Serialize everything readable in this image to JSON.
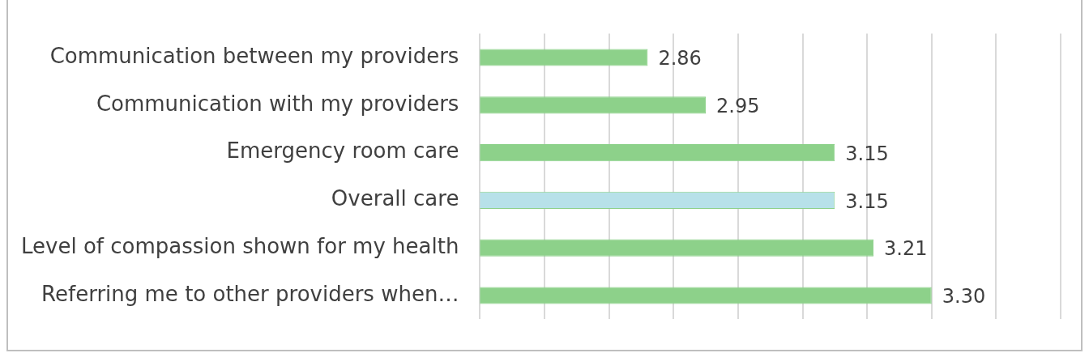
{
  "chart_data": {
    "type": "bar",
    "orientation": "horizontal",
    "categories": [
      "Communication between my providers",
      "Communication with my providers",
      "Emergency room care",
      "Overall care",
      "Level of compassion shown for my health",
      "Referring me to other providers when…"
    ],
    "values": [
      2.86,
      2.95,
      3.15,
      3.15,
      3.21,
      3.3
    ],
    "colors": [
      "#8dd18a",
      "#8dd18a",
      "#8dd18a",
      "#b7e1e9",
      "#8dd18a",
      "#8dd18a"
    ],
    "xlim": [
      2.6,
      3.5
    ],
    "xticks": [
      {
        "value": 2.6,
        "label": null
      },
      {
        "value": 2.7,
        "label": null
      },
      {
        "value": 2.8,
        "label": null
      },
      {
        "value": 2.9,
        "label": null
      },
      {
        "value": 3.0,
        "label": null
      },
      {
        "value": 3.1,
        "label": null
      },
      {
        "value": 3.2,
        "label": null
      },
      {
        "value": 3.3,
        "label": null
      },
      {
        "value": 3.4,
        "label": null
      },
      {
        "value": 3.5,
        "label": null
      }
    ],
    "value_labels": [
      "2.86",
      "2.95",
      "3.15",
      "3.15",
      "3.21",
      "3.30"
    ],
    "tick_labels": "y",
    "grid": "x",
    "legend": false
  }
}
